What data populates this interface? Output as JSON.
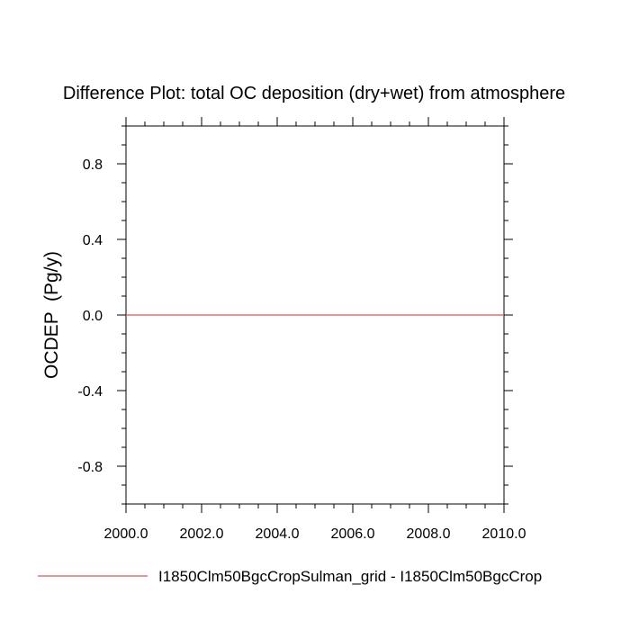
{
  "chart_data": {
    "type": "line",
    "title": "Difference Plot: total OC deposition (dry+wet) from atmosphere",
    "xlabel": "",
    "ylabel": "OCDEP  (Pg/y)",
    "xlim": [
      2000.0,
      2010.0
    ],
    "ylim": [
      -1.0,
      1.0
    ],
    "x_ticks": [
      "2000.0",
      "2002.0",
      "2004.0",
      "2006.0",
      "2008.0",
      "2010.0"
    ],
    "y_ticks": [
      "0.8",
      "0.4",
      "0.0",
      "-0.4",
      "-0.8"
    ],
    "grid": false,
    "legend_position": "bottom",
    "series": [
      {
        "name": "I1850Clm50BgcCropSulman_grid - I1850Clm50BgcCrop",
        "color": "#e05050",
        "x": [
          2000.0,
          2010.0
        ],
        "y": [
          0.0,
          0.0
        ]
      }
    ]
  }
}
